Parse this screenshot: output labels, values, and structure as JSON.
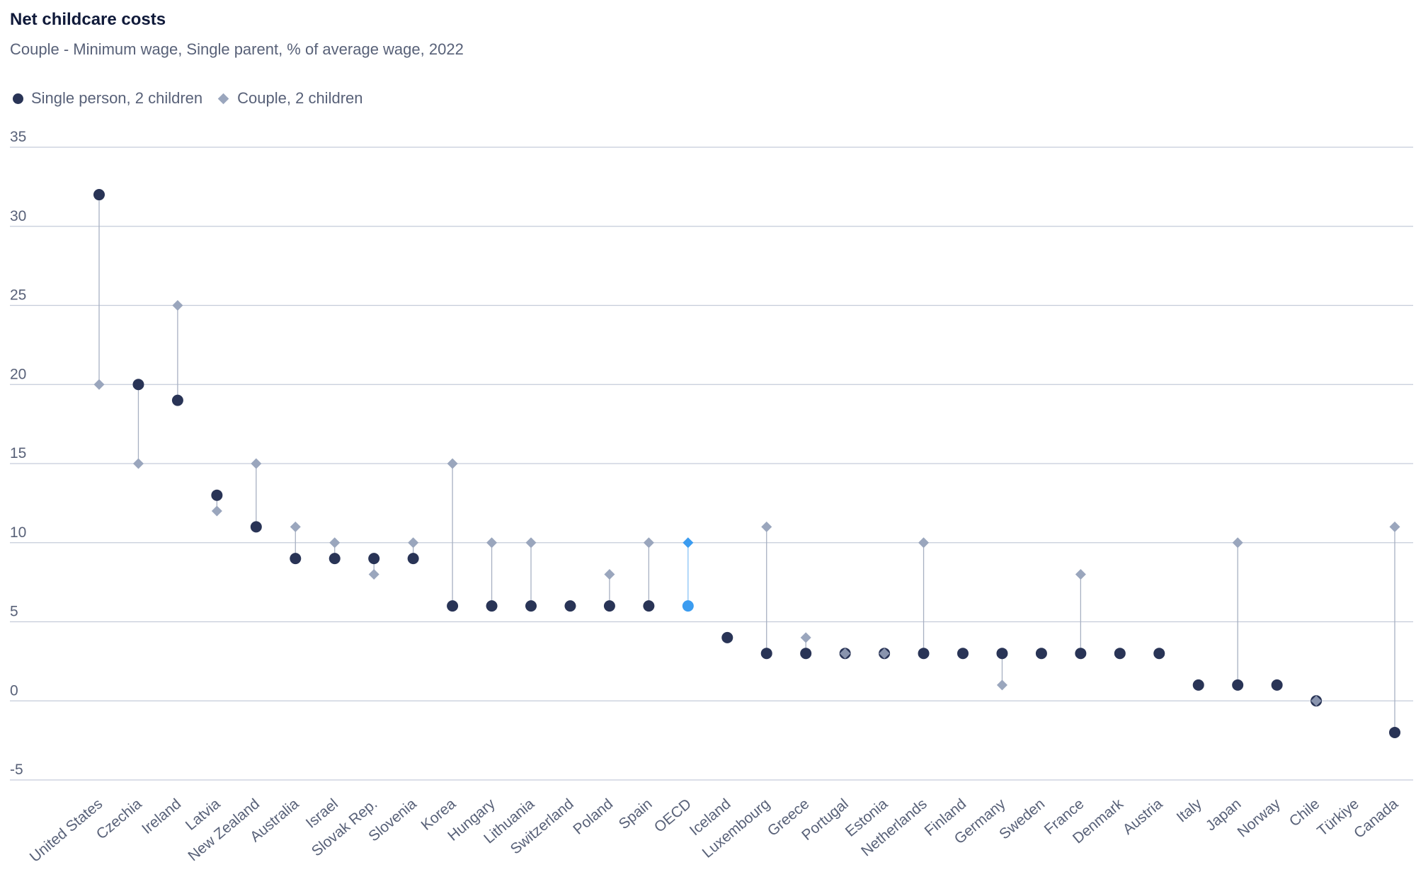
{
  "header": {
    "title": "Net childcare costs",
    "subtitle": "Couple - Minimum wage, Single parent, % of average wage, 2022"
  },
  "legend": {
    "single": "Single person, 2 children",
    "couple": "Couple, 2 children"
  },
  "colors": {
    "single": "#293456",
    "couple": "#9aa6bd",
    "highlight": "#3b9cf0",
    "grid": "#c5ccda",
    "stem": "#a7b0c2",
    "text": "#586178"
  },
  "chart_data": {
    "type": "dot",
    "title": "Net childcare costs",
    "subtitle": "Couple - Minimum wage, Single parent, % of average wage, 2022",
    "xlabel": "",
    "ylabel": "",
    "ylim": [
      -5,
      35
    ],
    "yticks": [
      -5,
      0,
      5,
      10,
      15,
      20,
      25,
      30,
      35
    ],
    "grid": true,
    "legend_position": "top-left",
    "highlight_category": "OECD",
    "categories": [
      "United States",
      "Czechia",
      "Ireland",
      "Latvia",
      "New Zealand",
      "Australia",
      "Israel",
      "Slovak Rep.",
      "Slovenia",
      "Korea",
      "Hungary",
      "Lithuania",
      "Switzerland",
      "Poland",
      "Spain",
      "OECD",
      "Iceland",
      "Luxembourg",
      "Greece",
      "Portugal",
      "Estonia",
      "Netherlands",
      "Finland",
      "Germany",
      "Sweden",
      "France",
      "Denmark",
      "Austria",
      "Italy",
      "Japan",
      "Norway",
      "Chile",
      "Türkiye",
      "Canada"
    ],
    "series": [
      {
        "name": "Single person, 2 children",
        "marker": "circle",
        "values": [
          32,
          20,
          19,
          13,
          11,
          9,
          9,
          9,
          9,
          6,
          6,
          6,
          6,
          6,
          6,
          6,
          4,
          3,
          3,
          3,
          3,
          3,
          3,
          3,
          3,
          3,
          3,
          3,
          1,
          1,
          1,
          0,
          null,
          -2
        ]
      },
      {
        "name": "Couple, 2 children",
        "marker": "diamond",
        "values": [
          20,
          15,
          25,
          12,
          15,
          11,
          10,
          8,
          10,
          15,
          10,
          10,
          null,
          8,
          10,
          10,
          null,
          11,
          4,
          3,
          3,
          10,
          null,
          1,
          null,
          8,
          null,
          null,
          null,
          10,
          null,
          0,
          null,
          11
        ]
      }
    ]
  }
}
